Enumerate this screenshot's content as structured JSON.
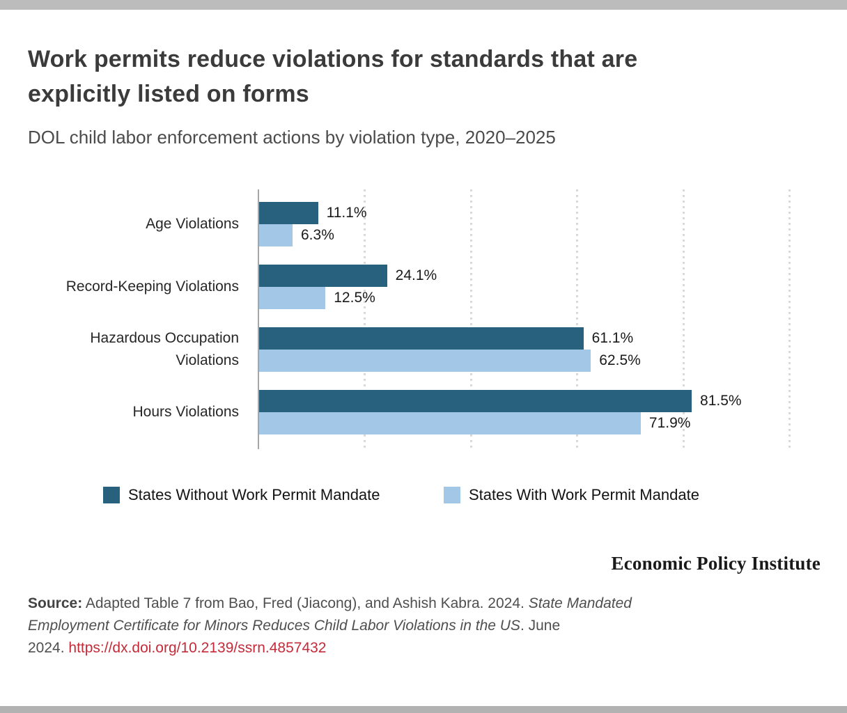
{
  "page": {
    "title": "Work permits reduce violations for standards that are\nexplicitly listed on forms",
    "subtitle": "DOL child labor enforcement actions by violation type, 2020–2025"
  },
  "chart_data": {
    "type": "bar",
    "orientation": "horizontal",
    "title": "Work permits reduce violations for standards that are explicitly listed on forms",
    "subtitle": "DOL child labor enforcement actions by violation type, 2020–2025",
    "categories": [
      "Age Violations",
      "Record-Keeping Violations",
      "Hazardous Occupation\nViolations",
      "Hours Violations"
    ],
    "series": [
      {
        "name": "States Without Work Permit Mandate",
        "color": "#28617e",
        "values": [
          11.1,
          24.1,
          61.1,
          81.5
        ],
        "labels": [
          "11.1%",
          "24.1%",
          "61.1%",
          "81.5%"
        ]
      },
      {
        "name": "States With Work Permit Mandate",
        "color": "#a2c7e7",
        "values": [
          6.3,
          12.5,
          62.5,
          71.9
        ],
        "labels": [
          "6.3%",
          "12.5%",
          "62.5%",
          "71.9%"
        ]
      }
    ],
    "value_suffix": "%",
    "xlim": [
      0,
      100
    ],
    "axis_ticks": [
      20,
      40,
      60,
      80,
      100
    ],
    "grid": "dotted-vertical",
    "legend_position": "bottom"
  },
  "branding": {
    "logo_text": "Economic Policy Institute"
  },
  "source": {
    "segments": [
      {
        "text": "Source:",
        "style": "bold"
      },
      {
        "text": " Adapted Table 7 from Bao, Fred (Jiacong), and Ashish Kabra. 2024. ",
        "style": "normal"
      },
      {
        "text": "State Mandated\nEmployment Certificate for Minors Reduces Child Labor Violations in the US",
        "style": "italic"
      },
      {
        "text": ". June\n2024. ",
        "style": "normal"
      },
      {
        "text": "https://dx.doi.org/10.2139/ssrn.4857432",
        "style": "link"
      }
    ]
  },
  "colors": {
    "top_band": "#bcbcbc",
    "bottom_band": "#b2b2b2",
    "axis_line": "#a6a6a6",
    "gridline": "#d9d9d9",
    "link": "#c42a38"
  }
}
